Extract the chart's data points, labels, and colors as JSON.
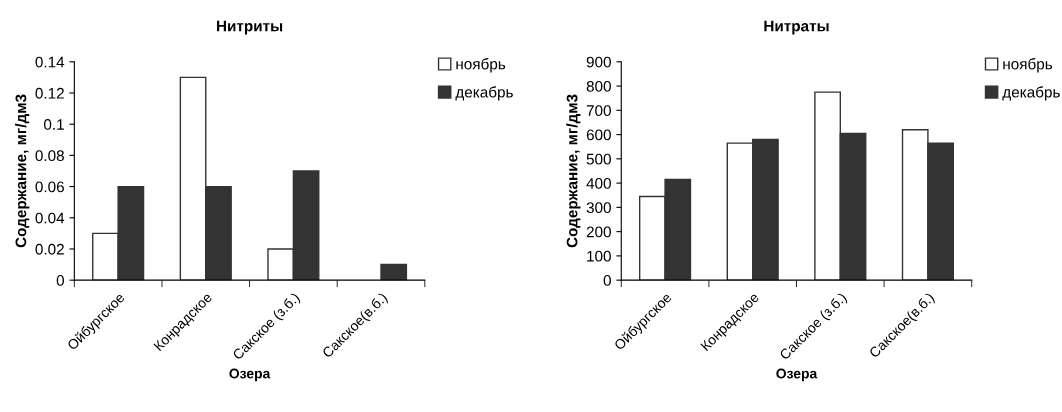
{
  "chart_data": [
    {
      "type": "bar",
      "title": "Нитриты",
      "xlabel": "Озера",
      "ylabel": "Содержание, мг/дм3",
      "categories": [
        "Ойбургское",
        "Конрадское",
        "Сакское (з.б.)",
        "Сакское(в.б.)"
      ],
      "series": [
        {
          "name": "ноябрь",
          "color": "#ffffff",
          "values": [
            0.03,
            0.13,
            0.02,
            null
          ]
        },
        {
          "name": "декабрь",
          "color": "#333333",
          "values": [
            0.06,
            0.06,
            0.07,
            0.01
          ]
        }
      ],
      "ylim": [
        0,
        0.14
      ],
      "yticks": [
        {
          "value": 0,
          "label": "0"
        },
        {
          "value": 0.02,
          "label": "0.02"
        },
        {
          "value": 0.04,
          "label": "0.04"
        },
        {
          "value": 0.06,
          "label": "0.06"
        },
        {
          "value": 0.08,
          "label": "0.08"
        },
        {
          "value": 0.1,
          "label": "0.1"
        },
        {
          "value": 0.12,
          "label": "0.12"
        },
        {
          "value": 0.14,
          "label": "0.14"
        }
      ],
      "grid": false,
      "legend": "top right"
    },
    {
      "type": "bar",
      "title": "Нитраты",
      "xlabel": "Озера",
      "ylabel": "Содержание, мг/дм3",
      "categories": [
        "Ойбургское",
        "Конрадское",
        "Сакское (з.б.)",
        "Сакское(в.б.)"
      ],
      "series": [
        {
          "name": "ноябрь",
          "color": "#ffffff",
          "values": [
            345,
            565,
            775,
            620
          ]
        },
        {
          "name": "декабрь",
          "color": "#333333",
          "values": [
            415,
            580,
            605,
            565
          ]
        }
      ],
      "ylim": [
        0,
        900
      ],
      "yticks": [
        0,
        100,
        200,
        300,
        400,
        500,
        600,
        700,
        800,
        900
      ],
      "grid": false,
      "legend": "top right"
    }
  ]
}
